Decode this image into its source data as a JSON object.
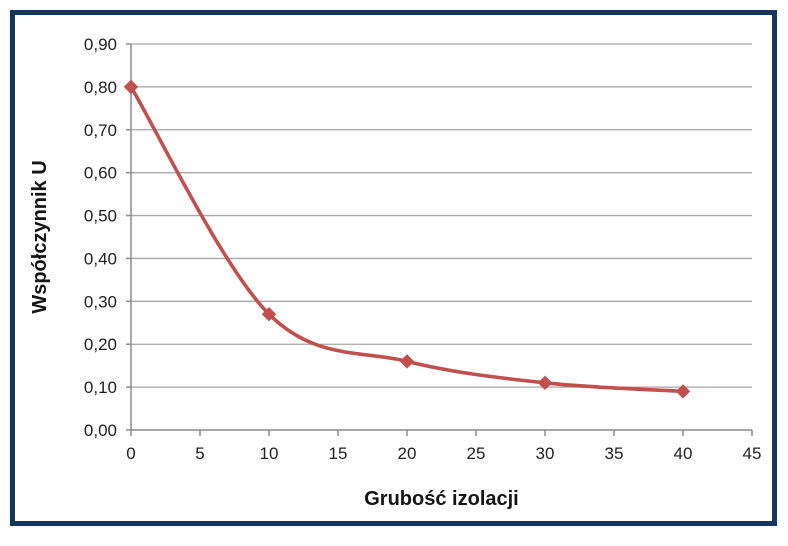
{
  "chart_data": {
    "type": "line",
    "x": [
      0,
      10,
      20,
      30,
      40
    ],
    "series": [
      {
        "name": "Współczynnik U",
        "values": [
          0.8,
          0.27,
          0.16,
          0.11,
          0.09
        ]
      }
    ],
    "title": "",
    "xlabel": "Grubość izolacji",
    "ylabel": "Współczynnik U",
    "xlim": [
      0,
      45
    ],
    "ylim": [
      0,
      0.9
    ],
    "x_tick_values": [
      0,
      5,
      10,
      15,
      20,
      25,
      30,
      35,
      40,
      45
    ],
    "x_tick_labels": [
      "0",
      "5",
      "10",
      "15",
      "20",
      "25",
      "30",
      "35",
      "40",
      "45"
    ],
    "y_tick_values": [
      0,
      0.1,
      0.2,
      0.3,
      0.4,
      0.5,
      0.6,
      0.7,
      0.8,
      0.9
    ],
    "y_tick_labels": [
      "0,00",
      "0,10",
      "0,20",
      "0,30",
      "0,40",
      "0,50",
      "0,60",
      "0,70",
      "0,80",
      "0,90"
    ],
    "grid": "horizontal-only",
    "legend": "none",
    "smooth_line": true,
    "marker": "diamond",
    "colors": {
      "line": "#C0504D",
      "marker": "#C0504D",
      "gridline": "#A6A6A6",
      "axis": "#8C8C8C",
      "tick_text": "#1f1f1f",
      "title_text": "#141414",
      "frame_border": "#17365D",
      "background": "#ffffff"
    }
  }
}
